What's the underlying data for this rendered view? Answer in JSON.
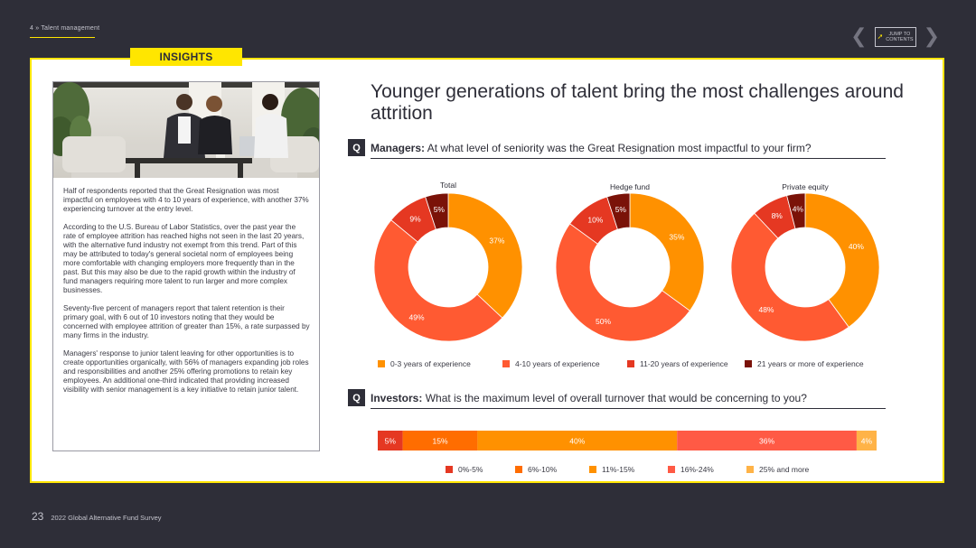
{
  "header": {
    "section": "4 » Talent management",
    "jump_line1": "JUMP TO",
    "jump_line2": "CONTENTS"
  },
  "insights_tab": "INSIGHTS",
  "left_panel": {
    "paragraphs": [
      "Half of respondents reported that the Great Resignation was most impactful on employees with 4 to 10 years of experience, with another 37% experiencing turnover at the entry level.",
      "According to the U.S. Bureau of Labor Statistics, over the past year the rate of employee attrition has reached highs not seen in the last 20 years, with the alternative fund industry not exempt from this trend. Part of this may be attributed to today's general societal norm of employees being more comfortable with changing employers more frequently than in the past. But this may also be due to the rapid growth within the industry of fund managers requiring more talent to run larger and more complex businesses.",
      "Seventy-five percent of managers report that talent retention is their primary goal, with 6 out of 10 investors noting that they would be concerned with employee attrition of greater than 15%, a rate surpassed by many firms in the industry.",
      "Managers' response to junior talent leaving for other opportunities is to create opportunities organically, with 56% of managers expanding job roles and responsibilities and another 25% offering promotions to retain key employees. An additional one-third indicated that providing increased visibility with senior management is a key initiative to retain junior talent."
    ]
  },
  "headline": "Younger generations of talent bring the most challenges around attrition",
  "question1": {
    "q": "Q",
    "lead": "Managers:",
    "text": " At what level of seniority was the Great Resignation most impactful to your firm?"
  },
  "question2": {
    "q": "Q",
    "lead": "Investors:",
    "text": " What is the maximum level of overall turnover that would be concerning to you?"
  },
  "footer": {
    "page": "23",
    "title": "2022 Global Alternative Fund Survey"
  },
  "chart_data": [
    {
      "type": "pie",
      "variant": "donut",
      "categories": [
        "0-3 years of experience",
        "4-10 years of experience",
        "11-20 years of experience",
        "21 years or more of experience"
      ],
      "colors": [
        "#ff9100",
        "#ff5a32",
        "#e53822",
        "#7a1208"
      ],
      "series": [
        {
          "name": "Total",
          "values": [
            37,
            49,
            9,
            5
          ],
          "labels": [
            "37%",
            "49%",
            "9%",
            "5%"
          ]
        },
        {
          "name": "Hedge fund",
          "values": [
            35,
            50,
            10,
            5
          ],
          "labels": [
            "35%",
            "50%",
            "10%",
            "5%"
          ]
        },
        {
          "name": "Private equity",
          "values": [
            40,
            48,
            8,
            4
          ],
          "labels": [
            "40%",
            "48%",
            "8%",
            "4%"
          ]
        }
      ],
      "legend": "bottom"
    },
    {
      "type": "bar",
      "variant": "stacked-horizontal-100",
      "categories": [
        "0%-5%",
        "6%-10%",
        "11%-15%",
        "16%-24%",
        "25% and more"
      ],
      "colors": [
        "#e53822",
        "#ff6d00",
        "#ff9100",
        "#ff5a45",
        "#ffb347"
      ],
      "values": [
        5,
        15,
        40,
        36,
        4
      ],
      "labels": [
        "5%",
        "15%",
        "40%",
        "36%",
        "4%"
      ],
      "legend": "bottom"
    }
  ]
}
